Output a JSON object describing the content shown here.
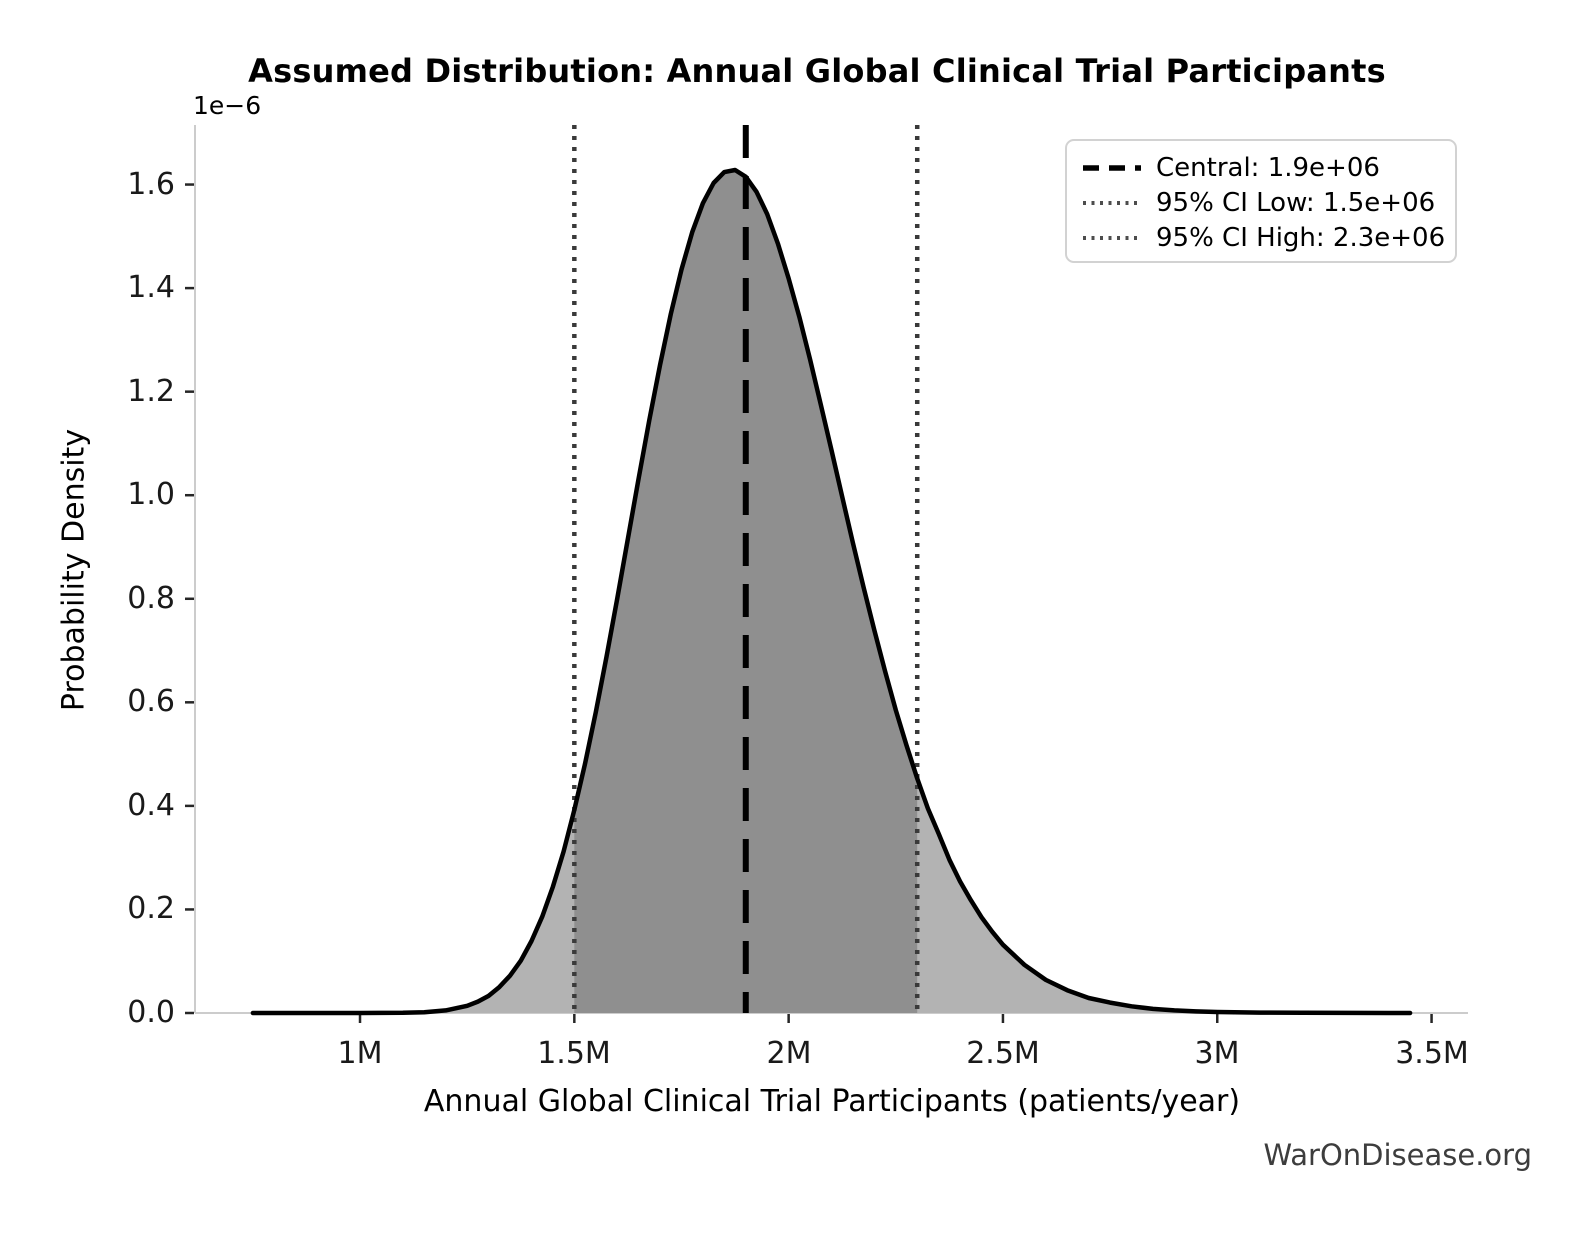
{
  "watermark": "WarOnDisease.org",
  "chart_data": {
    "type": "area",
    "title": "Assumed Distribution: Annual Global Clinical Trial Participants",
    "xlabel": "Annual Global Clinical Trial Participants (patients/year)",
    "ylabel": "Probability Density",
    "y_offset_text": "1e−6",
    "grid": false,
    "legend_position": "upper right",
    "xlim_millions": [
      0.615,
      3.585
    ],
    "ylim_1e6": [
      0,
      1.715
    ],
    "x_ticks": {
      "values": [
        1,
        1.5,
        2,
        2.5,
        3,
        3.5
      ],
      "labels": [
        "1M",
        "1.5M",
        "2M",
        "2.5M",
        "3M",
        "3.5M"
      ]
    },
    "y_ticks": {
      "values": [
        0,
        0.2,
        0.4,
        0.6,
        0.8,
        1.0,
        1.2,
        1.4,
        1.6
      ],
      "labels": [
        "0.0",
        "0.2",
        "0.4",
        "0.6",
        "0.8",
        "1.0",
        "1.2",
        "1.4",
        "1.6"
      ]
    },
    "curve": {
      "x_millions": [
        0.75,
        0.85,
        0.95,
        1.0,
        1.05,
        1.1,
        1.15,
        1.2,
        1.25,
        1.275,
        1.3,
        1.325,
        1.35,
        1.375,
        1.4,
        1.425,
        1.45,
        1.475,
        1.5,
        1.525,
        1.55,
        1.575,
        1.6,
        1.625,
        1.65,
        1.675,
        1.7,
        1.725,
        1.75,
        1.775,
        1.8,
        1.825,
        1.85,
        1.875,
        1.9,
        1.925,
        1.95,
        1.975,
        2.0,
        2.025,
        2.05,
        2.075,
        2.1,
        2.125,
        2.15,
        2.175,
        2.2,
        2.225,
        2.25,
        2.275,
        2.3,
        2.325,
        2.35,
        2.375,
        2.4,
        2.425,
        2.45,
        2.475,
        2.5,
        2.55,
        2.6,
        2.65,
        2.7,
        2.75,
        2.8,
        2.85,
        2.9,
        2.95,
        3.0,
        3.1,
        3.2,
        3.3,
        3.4,
        3.45
      ],
      "density_1e6": [
        0,
        0,
        0,
        2e-05,
        0.0001,
        0.0004,
        0.0015,
        0.005,
        0.014,
        0.022,
        0.033,
        0.05,
        0.072,
        0.101,
        0.139,
        0.186,
        0.244,
        0.312,
        0.392,
        0.481,
        0.581,
        0.688,
        0.8,
        0.916,
        1.032,
        1.145,
        1.252,
        1.35,
        1.436,
        1.508,
        1.564,
        1.603,
        1.624,
        1.628,
        1.615,
        1.586,
        1.543,
        1.486,
        1.419,
        1.344,
        1.262,
        1.175,
        1.087,
        0.997,
        0.908,
        0.822,
        0.739,
        0.66,
        0.585,
        0.517,
        0.453,
        0.395,
        0.346,
        0.296,
        0.254,
        0.218,
        0.185,
        0.157,
        0.132,
        0.093,
        0.064,
        0.044,
        0.029,
        0.02,
        0.013,
        0.008,
        0.005,
        0.003,
        0.002,
        0.0008,
        0.0003,
        0.0001,
        4e-05,
        2e-05
      ]
    },
    "markers": {
      "central": {
        "value_millions": 1.9,
        "style": "dashed",
        "color": "#000000"
      },
      "ci_low": {
        "value_millions": 1.5,
        "style": "dotted",
        "color": "#3a3a3a"
      },
      "ci_high": {
        "value_millions": 2.3,
        "style": "dotted",
        "color": "#3a3a3a"
      }
    },
    "shaded_ci_region_millions": [
      1.5,
      2.3
    ],
    "legend": [
      {
        "label": "Central: 1.9e+06",
        "style": "dashed",
        "color": "#000000"
      },
      {
        "label": "95% CI Low: 1.5e+06",
        "style": "dotted",
        "color": "#4d4d4d"
      },
      {
        "label": "95% CI High: 2.3e+06",
        "style": "dotted",
        "color": "#4d4d4d"
      }
    ],
    "colors": {
      "curve": "#000000",
      "fill_outer": "#b3b3b3",
      "fill_inner": "#8f8f8f",
      "spine": "#cccccc",
      "tick": "#262626",
      "text": "#000000",
      "watermark": "#3d3d3d"
    }
  }
}
